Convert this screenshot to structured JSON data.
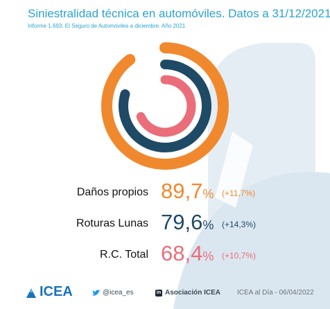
{
  "title": "Siniestralidad técnica en automóviles. Datos a 31/12/2021",
  "subtitle": "Informe 1.693: El Seguro de Automóviles a diciembre. Año 2021",
  "chart_data": {
    "type": "radial-bar",
    "max": 100,
    "series": [
      {
        "name": "Daños propios",
        "value": 89.7,
        "value_label": "89,7",
        "unit": "%",
        "change": "(+11,7%)",
        "color": "#f0892e"
      },
      {
        "name": "Roturas Lunas",
        "value": 79.6,
        "value_label": "79,6",
        "unit": "%",
        "change": "(+14,3%)",
        "color": "#1f4a66"
      },
      {
        "name": "R.C. Total",
        "value": 68.4,
        "value_label": "68,4",
        "unit": "%",
        "change": "(+10,7%)",
        "color": "#ea6d7a"
      }
    ]
  },
  "footer": {
    "logo": "ICEA",
    "twitter": "@icea_es",
    "linkedin": "Asociación ICEA",
    "date": "ICEA al Día - 06/04/2022"
  },
  "icons": [
    "icea-logo-icon",
    "twitter-icon",
    "linkedin-icon"
  ],
  "colors": {
    "accent": "#2aa3cf",
    "background_shape": "#dfeaf2"
  }
}
